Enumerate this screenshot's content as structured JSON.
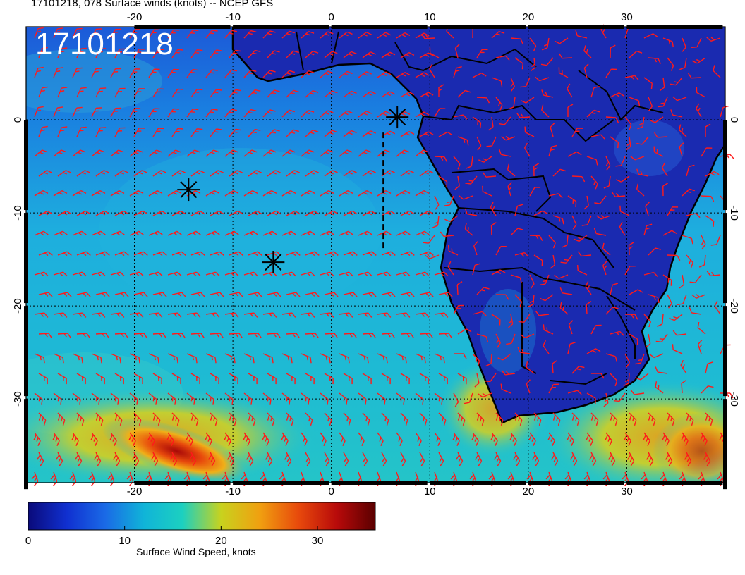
{
  "map": {
    "title": "17101218, 078 Surface winds (knots) -- NCEP GFS",
    "stamp": "17101218",
    "lon_ticks": [
      "-20",
      "-10",
      "0",
      "10",
      "20",
      "30"
    ],
    "lat_ticks": [
      "0",
      "-10",
      "-20",
      "-30"
    ],
    "lon_range": [
      -31,
      40
    ],
    "lat_range": [
      -39,
      10
    ],
    "grid": "dotted",
    "markers": [
      {
        "name": "star-marker",
        "lon": -14.5,
        "lat": -7.5
      },
      {
        "name": "star-marker",
        "lon": -5.9,
        "lat": -15.3
      },
      {
        "name": "star-marker",
        "lon": 6.7,
        "lat": 0.3
      }
    ],
    "barb_color": "#ff1a1a",
    "coast_color": "#000000"
  },
  "colorbar": {
    "title": "Surface Wind Speed, knots",
    "ticks": [
      "0",
      "10",
      "20",
      "30"
    ],
    "range": [
      0,
      36
    ],
    "colors": [
      "#0a0a7a",
      "#1030d0",
      "#1a6ae6",
      "#10b4d8",
      "#1cd0c0",
      "#c8d21e",
      "#f0a010",
      "#e84a0c",
      "#b80a0a",
      "#5a0000"
    ]
  }
}
